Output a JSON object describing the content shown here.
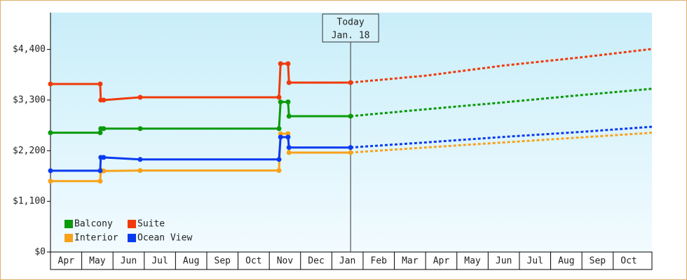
{
  "chart_data": {
    "type": "line",
    "ylim": [
      0,
      5200
    ],
    "yticks": [
      {
        "value": 0,
        "label": "$0"
      },
      {
        "value": 1100,
        "label": "$1,100"
      },
      {
        "value": 2200,
        "label": "$2,200"
      },
      {
        "value": 3300,
        "label": "$3,300"
      },
      {
        "value": 4400,
        "label": "$4,400"
      }
    ],
    "xlim": [
      0,
      19.24
    ],
    "xticks": [
      {
        "value": 0.5,
        "label": "Apr"
      },
      {
        "value": 1.5,
        "label": "May"
      },
      {
        "value": 2.5,
        "label": "Jun"
      },
      {
        "value": 3.5,
        "label": "Jul"
      },
      {
        "value": 4.5,
        "label": "Aug"
      },
      {
        "value": 5.5,
        "label": "Sep"
      },
      {
        "value": 6.5,
        "label": "Oct"
      },
      {
        "value": 7.5,
        "label": "Nov"
      },
      {
        "value": 8.5,
        "label": "Dec"
      },
      {
        "value": 9.5,
        "label": "Jan"
      },
      {
        "value": 10.5,
        "label": "Feb"
      },
      {
        "value": 11.5,
        "label": "Mar"
      },
      {
        "value": 12.5,
        "label": "Apr"
      },
      {
        "value": 13.5,
        "label": "May"
      },
      {
        "value": 14.5,
        "label": "Jun"
      },
      {
        "value": 15.5,
        "label": "Jul"
      },
      {
        "value": 16.5,
        "label": "Aug"
      },
      {
        "value": 17.5,
        "label": "Sep"
      },
      {
        "value": 18.5,
        "label": "Oct"
      }
    ],
    "annotation": {
      "x": 9.6,
      "lines": [
        "Today",
        "Jan. 18"
      ]
    },
    "legend": "lower left",
    "series": [
      {
        "name": "Balcony",
        "color": "#0a9a0a",
        "x": [
          0,
          1.59,
          1.61,
          1.7,
          2.87,
          7.31,
          7.36,
          7.6,
          7.63,
          9.6
        ],
        "values": [
          2590,
          2590,
          2680,
          2680,
          2680,
          2680,
          3260,
          3260,
          2950,
          2950
        ],
        "forecast": {
          "x": [
            9.6,
            12,
            14.5,
            17,
            19.24
          ],
          "values": [
            2950,
            3100,
            3250,
            3410,
            3545
          ]
        }
      },
      {
        "name": "Suite",
        "color": "#f03a0a",
        "x": [
          0,
          1.59,
          1.61,
          1.7,
          2.87,
          7.31,
          7.36,
          7.6,
          7.63,
          9.6
        ],
        "values": [
          3650,
          3650,
          3300,
          3300,
          3360,
          3360,
          4090,
          4090,
          3680,
          3680
        ],
        "forecast": {
          "x": [
            9.6,
            12,
            14.5,
            17,
            19.24
          ],
          "values": [
            3680,
            3830,
            4050,
            4230,
            4410
          ]
        }
      },
      {
        "name": "Interior",
        "color": "#f8a21a",
        "x": [
          0,
          1.59,
          1.61,
          1.7,
          2.87,
          7.31,
          7.36,
          7.6,
          7.63,
          9.6
        ],
        "values": [
          1540,
          1540,
          1780,
          1760,
          1770,
          1770,
          2570,
          2570,
          2160,
          2160
        ],
        "forecast": {
          "x": [
            9.6,
            12,
            14.5,
            17,
            19.24
          ],
          "values": [
            2160,
            2270,
            2380,
            2490,
            2590
          ]
        }
      },
      {
        "name": "Ocean View",
        "color": "#0a3af0",
        "x": [
          0,
          1.59,
          1.61,
          1.7,
          2.87,
          7.31,
          7.36,
          7.6,
          7.63,
          9.6
        ],
        "values": [
          1765,
          1765,
          2055,
          2055,
          2010,
          2010,
          2495,
          2495,
          2270,
          2270
        ],
        "forecast": {
          "x": [
            9.6,
            12,
            14.5,
            17,
            19.24
          ],
          "values": [
            2270,
            2380,
            2500,
            2610,
            2720
          ]
        }
      }
    ]
  }
}
